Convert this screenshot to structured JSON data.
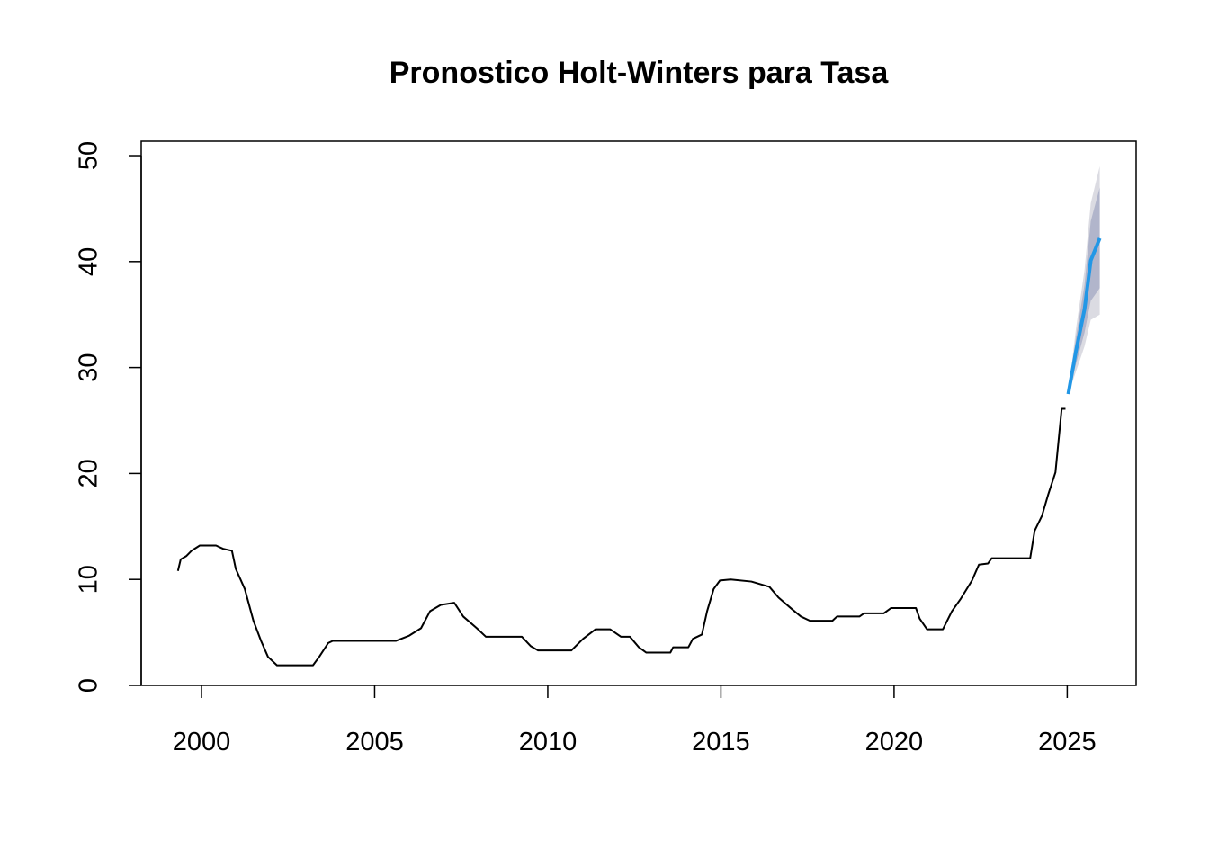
{
  "chart_data": {
    "type": "line",
    "title": "Pronostico Holt-Winters para Tasa",
    "xlim": [
      1998.26,
      2026.99
    ],
    "ylim": [
      0,
      51.36
    ],
    "xticks": [
      2000,
      2005,
      2010,
      2015,
      2020,
      2025
    ],
    "yticks": [
      0,
      10,
      20,
      30,
      40,
      50
    ],
    "series": [
      {
        "color": "#000000",
        "x": [
          1999.32,
          1999.4,
          1999.56,
          1999.71,
          1999.95,
          2000.42,
          2000.62,
          2000.88,
          2000.99,
          2001.25,
          2001.5,
          2001.72,
          2001.92,
          2002.18,
          2003.22,
          2003.4,
          2003.66,
          2003.79,
          2005.61,
          2006.0,
          2006.34,
          2006.6,
          2006.91,
          2007.3,
          2007.56,
          2007.95,
          2008.21,
          2009.25,
          2009.51,
          2009.72,
          2010.68,
          2011.02,
          2011.38,
          2011.8,
          2012.11,
          2012.37,
          2012.63,
          2012.84,
          2013.54,
          2013.62,
          2014.06,
          2014.19,
          2014.45,
          2014.6,
          2014.79,
          2014.97,
          2015.28,
          2015.88,
          2016.4,
          2016.66,
          2017.05,
          2017.31,
          2017.57,
          2018.22,
          2018.35,
          2019.0,
          2019.13,
          2019.7,
          2019.91,
          2020.63,
          2020.74,
          2020.95,
          2021.41,
          2021.67,
          2021.93,
          2022.25,
          2022.45,
          2022.71,
          2022.82,
          2023.93,
          2024.06,
          2024.27,
          2024.45,
          2024.66,
          2024.84,
          2024.95
        ],
        "values": [
          10.8,
          11.9,
          12.2,
          12.7,
          13.2,
          13.2,
          12.9,
          12.7,
          11.0,
          9.1,
          6.1,
          4.2,
          2.7,
          1.9,
          1.9,
          2.7,
          4.0,
          4.2,
          4.2,
          4.7,
          5.4,
          7.0,
          7.6,
          7.8,
          6.5,
          5.4,
          4.6,
          4.6,
          3.7,
          3.3,
          3.3,
          4.4,
          5.3,
          5.3,
          4.6,
          4.6,
          3.6,
          3.1,
          3.1,
          3.6,
          3.6,
          4.4,
          4.8,
          7.0,
          9.1,
          9.9,
          10.0,
          9.8,
          9.3,
          8.3,
          7.2,
          6.5,
          6.1,
          6.1,
          6.5,
          6.5,
          6.8,
          6.8,
          7.3,
          7.3,
          6.3,
          5.3,
          5.3,
          7.0,
          8.2,
          9.9,
          11.4,
          11.5,
          12.0,
          12.0,
          14.6,
          16.0,
          18.0,
          20.1,
          26.1,
          26.1
        ]
      },
      {
        "color": "#2297e6",
        "x": [
          2025.03,
          2025.25,
          2025.5,
          2025.68,
          2025.94
        ],
        "values": [
          27.5,
          31.5,
          35.5,
          40.1,
          42.2
        ],
        "bands": [
          {
            "color": "#dbdbe2",
            "lower": [
              27.5,
              29.6,
              32.0,
              34.5,
              35.0
            ],
            "upper": [
              27.5,
              33.6,
              39.2,
              45.5,
              49.0
            ]
          },
          {
            "color": "#b1b5cb",
            "lower": [
              27.5,
              30.3,
              33.3,
              36.3,
              37.5
            ],
            "upper": [
              27.5,
              32.8,
              37.8,
              43.8,
              47.0
            ]
          }
        ]
      }
    ]
  }
}
